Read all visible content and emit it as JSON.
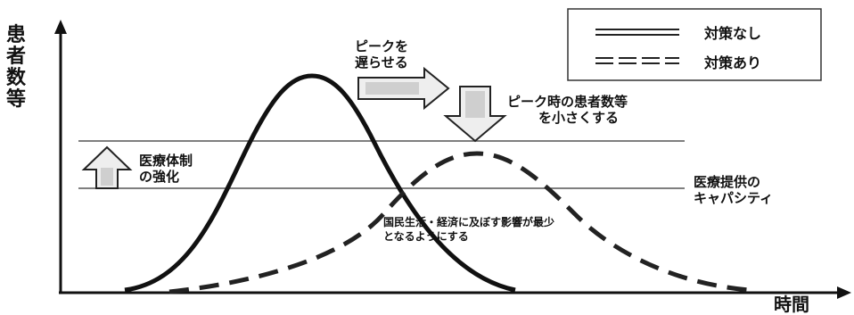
{
  "y_axis_label": "患者数等",
  "x_axis_label": "時間",
  "legend": {
    "no_measures": "対策なし",
    "with_measures": "対策あり"
  },
  "annotations": {
    "delay_peak_line1": "ピークを",
    "delay_peak_line2": "遅らせる",
    "reduce_peak_line1": "ピーク時の患者数等",
    "reduce_peak_line2": "を小さくする",
    "strengthen_line1": "医療体制",
    "strengthen_line2": "の強化",
    "capacity_line1": "医療提供の",
    "capacity_line2": "キャパシティ",
    "minimize_line1": "国民生活・経済に及ぼす影響が最少",
    "minimize_line2": "となるようにする"
  },
  "colors": {
    "curve": "#111111",
    "guide": "#555555",
    "arrow_fill": "#e8e8e8"
  }
}
